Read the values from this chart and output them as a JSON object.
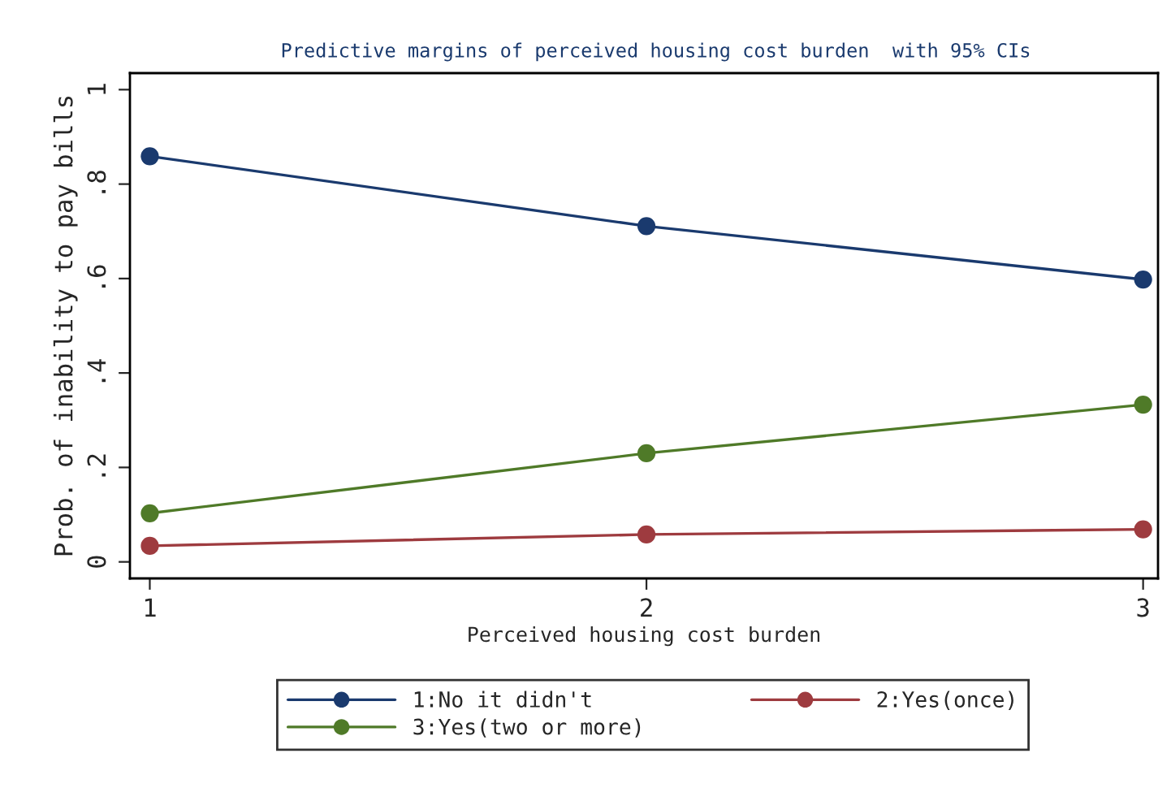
{
  "chart_data": {
    "type": "line",
    "title": "Predictive margins of perceived housing cost burden  with 95% CIs",
    "xlabel": "Perceived housing cost burden",
    "ylabel": "Prob. of inability to pay bills",
    "x": [
      1,
      2,
      3
    ],
    "series": [
      {
        "name": "1:No it didn't",
        "color": "#1a3a6e",
        "values": [
          0.859,
          0.711,
          0.598
        ]
      },
      {
        "name": "2:Yes(once)",
        "color": "#9e3b3f",
        "values": [
          0.034,
          0.058,
          0.069
        ]
      },
      {
        "name": "3:Yes(two or more)",
        "color": "#4f7a28",
        "values": [
          0.103,
          0.23,
          0.333
        ]
      }
    ],
    "xlim": [
      0.96,
      3.03
    ],
    "xticks": [
      1,
      2,
      3
    ],
    "ylim": [
      -0.035,
      1.035
    ],
    "yticks": [
      {
        "value": 0,
        "label": "0"
      },
      {
        "value": 0.2,
        "label": ".2"
      },
      {
        "value": 0.4,
        "label": ".4"
      },
      {
        "value": 0.6,
        "label": ".6"
      },
      {
        "value": 0.8,
        "label": ".8"
      },
      {
        "value": 1,
        "label": "1"
      }
    ],
    "grid": false,
    "legend": "bottom",
    "marker": "circle",
    "line_style": "solid"
  }
}
